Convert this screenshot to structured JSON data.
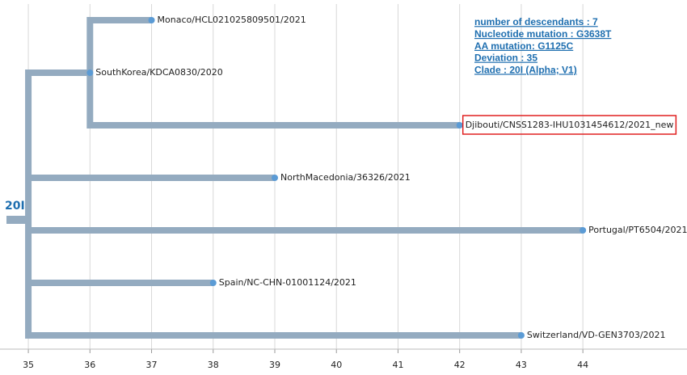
{
  "chart_data": {
    "type": "tree",
    "tree": {
      "name": "20I",
      "x": 35,
      "children": [
        {
          "name": "SouthKorea/KDCA0830/2020",
          "x": 36,
          "children": [
            {
              "name": "Monaco/HCL021025809501/2021",
              "x": 37
            },
            {
              "name": "Djibouti/CNSS1283-IHU1031454612/2021_new",
              "x": 42,
              "highlight": true
            }
          ]
        },
        {
          "name": "NorthMacedonia/36326/2021",
          "x": 39
        },
        {
          "name": "Portugal/PT6504/2021",
          "x": 44
        },
        {
          "name": "Spain/NC-CHN-01001124/2021",
          "x": 38
        },
        {
          "name": "Switzerland/VD-GEN3703/2021",
          "x": 43
        }
      ]
    },
    "annotations": [
      "number of descendants : 7",
      "Nucleotide mutation : G3638T",
      "AA mutation: G1125C",
      "Deviation : 35",
      "Clade : 20I (Alpha; V1)"
    ],
    "xlim": [
      34.54,
      45.69
    ],
    "xticks": [
      35,
      36,
      37,
      38,
      39,
      40,
      41,
      42,
      43,
      44
    ],
    "grid": true,
    "branch_color": "#94abc0",
    "node_color": "#5b9bd5",
    "highlight_color": "#e02020"
  }
}
